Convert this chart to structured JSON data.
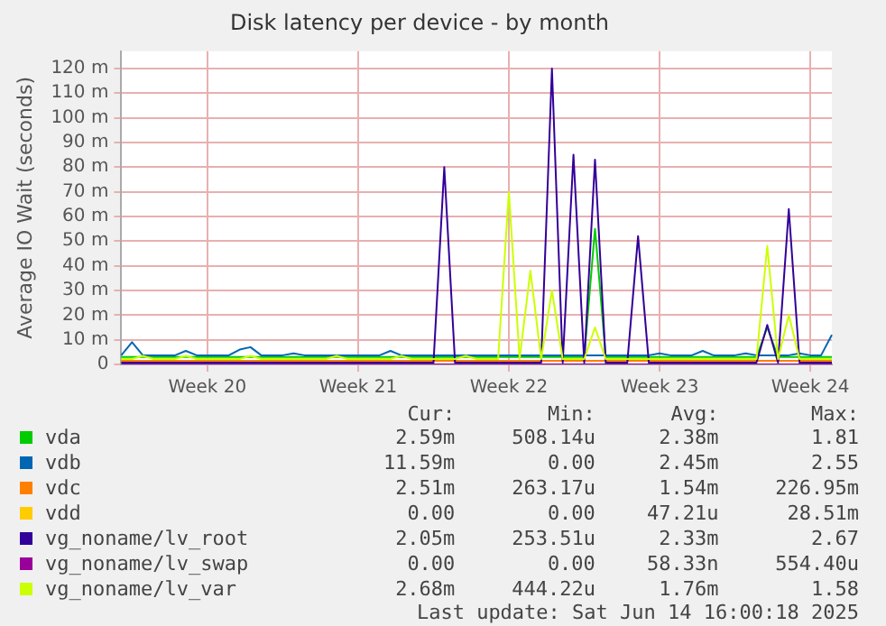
{
  "chart_data": {
    "type": "line",
    "title": "Disk latency per device - by month",
    "ylabel": "Average IO Wait (seconds)",
    "categories": [
      null,
      null,
      null,
      null,
      null,
      null,
      null,
      null,
      "Week 20",
      null,
      null,
      null,
      null,
      null,
      null,
      null,
      null,
      null,
      null,
      null,
      null,
      null,
      "Week 21",
      null,
      null,
      null,
      null,
      null,
      null,
      null,
      null,
      null,
      null,
      null,
      null,
      null,
      "Week 22",
      null,
      null,
      null,
      null,
      null,
      null,
      null,
      null,
      null,
      null,
      null,
      null,
      null,
      "Week 23",
      null,
      null,
      null,
      null,
      null,
      null,
      null,
      null,
      null,
      null,
      null,
      null,
      null,
      "Week 24",
      null,
      null
    ],
    "ylim": [
      0,
      127
    ],
    "yticks": [
      0,
      {
        "value": 10,
        "label": "10 m"
      },
      {
        "value": 20,
        "label": "20 m"
      },
      {
        "value": 30,
        "label": "30 m"
      },
      {
        "value": 40,
        "label": "40 m"
      },
      {
        "value": 50,
        "label": "50 m"
      },
      {
        "value": 60,
        "label": "60 m"
      },
      {
        "value": 70,
        "label": "70 m"
      },
      {
        "value": 80,
        "label": "80 m"
      },
      {
        "value": 90,
        "label": "90 m"
      },
      {
        "value": 100,
        "label": "100 m"
      },
      {
        "value": 110,
        "label": "110 m"
      },
      {
        "value": 120,
        "label": "120 m"
      }
    ],
    "grid": true,
    "legend": "bottom",
    "marker": "none",
    "line_style": "solid",
    "series": [
      {
        "name": "vda",
        "color": "#00cc00",
        "values": [
          3,
          3,
          3,
          3,
          3,
          3,
          3,
          3,
          3,
          3,
          3,
          3,
          3,
          3,
          3,
          3,
          3,
          3,
          3,
          3,
          3,
          3,
          3,
          3,
          3,
          3,
          3,
          3,
          3,
          3,
          3,
          3,
          3,
          3,
          3,
          3,
          3,
          3,
          3,
          3,
          3,
          3,
          3,
          3,
          55,
          3,
          3,
          3,
          3,
          3,
          3,
          3,
          3,
          3,
          3,
          3,
          3,
          3,
          3,
          3,
          15,
          3,
          3,
          3,
          3,
          3,
          3
        ]
      },
      {
        "name": "vdb",
        "color": "#0066b3",
        "values": [
          3.7,
          9,
          3.7,
          3.7,
          3.7,
          3.7,
          5.5,
          3.7,
          3.7,
          3.7,
          3.7,
          6,
          7,
          3.7,
          3.7,
          3.7,
          4.5,
          3.7,
          3.7,
          3.7,
          3.7,
          3.7,
          3.7,
          3.7,
          3.7,
          5.5,
          3.7,
          3.7,
          3.7,
          3.7,
          3.7,
          3.7,
          3.7,
          3.7,
          3.7,
          3.7,
          3.7,
          3.7,
          3.7,
          3.7,
          3.7,
          3.7,
          3.7,
          3.7,
          3.7,
          3.7,
          3.7,
          3.7,
          3.7,
          3.7,
          4.5,
          3.7,
          3.7,
          3.7,
          5.5,
          3.7,
          3.7,
          3.7,
          4.5,
          3.7,
          3.7,
          3.7,
          3.7,
          4.5,
          3.7,
          3.7,
          12
        ]
      },
      {
        "name": "vdc",
        "color": "#ff8000",
        "values": [
          1.5,
          1.5,
          1.5,
          1.5,
          1.5,
          1.5,
          1.5,
          1.5,
          1.5,
          1.5,
          1.5,
          1.5,
          1.5,
          1.5,
          1.5,
          1.5,
          1.5,
          1.5,
          1.5,
          1.5,
          1.5,
          1.5,
          1.5,
          1.5,
          1.5,
          1.5,
          1.5,
          1.5,
          1.5,
          1.5,
          1.5,
          1.5,
          1.5,
          1.5,
          1.5,
          1.5,
          1.5,
          1.5,
          1.5,
          1.5,
          1.5,
          1.5,
          1.5,
          1.5,
          1.5,
          1.5,
          1.5,
          1.5,
          1.5,
          1.5,
          1.5,
          1.5,
          1.5,
          1.5,
          1.5,
          1.5,
          1.5,
          1.5,
          1.5,
          1.5,
          1.5,
          1.5,
          1.5,
          1.5,
          1.5,
          1.5,
          1.5
        ]
      },
      {
        "name": "vdd",
        "color": "#ffcc00",
        "values": [
          null,
          null,
          null,
          null,
          null,
          null,
          null,
          null,
          null,
          null,
          null,
          null,
          null,
          null,
          null,
          null,
          null,
          null,
          null,
          null,
          null,
          null,
          null,
          null,
          null,
          null,
          null,
          null,
          null,
          null,
          null,
          null,
          null,
          null,
          null,
          null,
          null,
          null,
          null,
          null,
          null,
          null,
          null,
          null,
          null,
          null,
          null,
          null,
          null,
          null,
          null,
          null,
          null,
          null,
          null,
          null,
          null,
          null,
          null,
          null,
          null,
          null,
          null,
          null,
          null,
          null,
          null
        ]
      },
      {
        "name": "vg_noname/lv_root",
        "color": "#330099",
        "values": [
          0.7,
          0.7,
          0.7,
          0.7,
          0.7,
          0.7,
          0.7,
          0.7,
          0.7,
          0.7,
          0.7,
          0.7,
          0.7,
          0.7,
          0.7,
          0.7,
          0.7,
          0.7,
          0.7,
          0.7,
          0.7,
          0.7,
          0.7,
          0.7,
          0.7,
          0.7,
          0.7,
          0.7,
          0.7,
          0.7,
          80,
          0.7,
          0.7,
          0.7,
          0.7,
          0.7,
          0.7,
          0.7,
          0.7,
          0.7,
          120,
          0.7,
          85,
          0.7,
          83,
          0.7,
          0.7,
          0.7,
          52,
          0.7,
          0.7,
          0.7,
          0.7,
          0.7,
          0.7,
          0.7,
          0.7,
          0.7,
          0.7,
          0.7,
          16,
          0.7,
          63,
          0.7,
          0.7,
          0.7,
          0.7
        ]
      },
      {
        "name": "vg_noname/lv_swap",
        "color": "#990099",
        "values": [
          0,
          0,
          0,
          0,
          0,
          0,
          0,
          0,
          0,
          0,
          0,
          0,
          0,
          0,
          0,
          0,
          0,
          0,
          0,
          0,
          0,
          0,
          0,
          0,
          0,
          0,
          0,
          0,
          0,
          0,
          0,
          0,
          0,
          0,
          0,
          0,
          0,
          0,
          0,
          0,
          0,
          0,
          0,
          0,
          0,
          0,
          0,
          0,
          0,
          0,
          0,
          0,
          0,
          0,
          0,
          0,
          0,
          0,
          0,
          0,
          0,
          0,
          0,
          0,
          0,
          0,
          0
        ]
      },
      {
        "name": "vg_noname/lv_var",
        "color": "#ccff00",
        "values": [
          2.2,
          2.2,
          3.5,
          2.2,
          2.2,
          2.2,
          3.5,
          2.2,
          2.2,
          2.2,
          2.2,
          2.2,
          3.5,
          2.2,
          2.2,
          2.2,
          2.2,
          2.2,
          2.2,
          2.2,
          3.5,
          2.2,
          2.2,
          2.2,
          2.2,
          2.2,
          3.5,
          2.2,
          2.2,
          2.2,
          2.2,
          2.2,
          3.5,
          2.2,
          2.2,
          2.2,
          70,
          2.2,
          38,
          2.2,
          30,
          2.2,
          2.2,
          2.2,
          15,
          2.2,
          2.2,
          2.2,
          2.2,
          2.2,
          2.2,
          2.2,
          2.2,
          2.2,
          2.2,
          2.2,
          2.2,
          2.2,
          2.2,
          2.2,
          48,
          2.2,
          20,
          2.2,
          2.2,
          2.2,
          2.2
        ]
      }
    ],
    "annotations": [
      "Cur:",
      "Min:",
      "Avg:",
      "Max:",
      "2.59m",
      "508.14u",
      "2.38m",
      "1.81",
      "11.59m",
      "0.00",
      "2.45m",
      "2.55",
      "2.51m",
      "263.17u",
      "1.54m",
      "226.95m",
      "0.00",
      "0.00",
      "47.21u",
      "28.51m",
      "2.05m",
      "253.51u",
      "2.33m",
      "2.67",
      "0.00",
      "0.00",
      "58.33n",
      "554.40u",
      "2.68m",
      "444.22u",
      "1.76m",
      "1.58",
      "Last update: Sat Jun 14 16:00:18 2025"
    ]
  }
}
